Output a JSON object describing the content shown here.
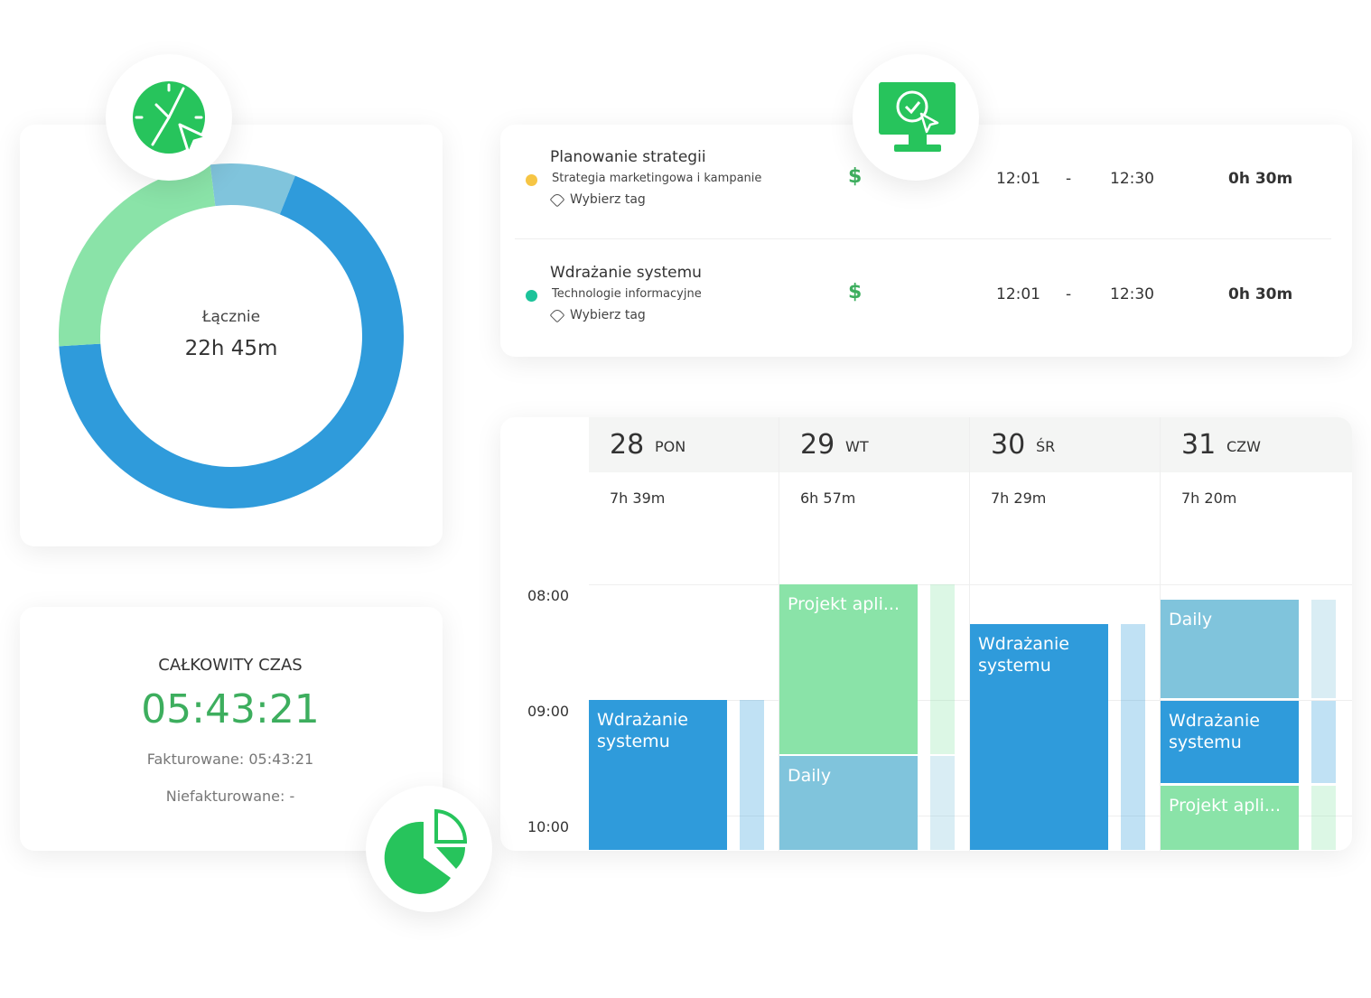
{
  "donut": {
    "label": "Łącznie",
    "total": "22h 45m",
    "segments": [
      {
        "color": "#80c4dc",
        "value": 8
      },
      {
        "color": "#2f9bdb",
        "value": 68
      },
      {
        "color": "#8ae3a8",
        "value": 24
      }
    ]
  },
  "summary": {
    "title": "CAŁKOWITY CZAS",
    "time": "05:43:21",
    "billed": "Fakturowane: 05:43:21",
    "unbilled": "Niefakturowane: -"
  },
  "entries": [
    {
      "title": "Planowanie strategii",
      "project": "Strategia marketingowa i kampanie",
      "dot_color": "#f6c544",
      "tag": "Wybierz tag",
      "currency": "$",
      "start": "12:01",
      "separator": "-",
      "end": "12:30",
      "duration": "0h 30m"
    },
    {
      "title": "Wdrażanie systemu",
      "project": "Technologie informacyjne",
      "dot_color": "#1cc39a",
      "tag": "Wybierz tag",
      "currency": "$",
      "start": "12:01",
      "separator": "-",
      "end": "12:30",
      "duration": "0h 30m"
    }
  ],
  "calendar": {
    "hours": [
      "08:00",
      "09:00",
      "10:00"
    ],
    "days": [
      {
        "date": "28",
        "weekday": "PON",
        "total": "7h 39m",
        "blocks": [
          {
            "label": "Wdrażanie systemu",
            "color": "#2f9bdb"
          }
        ]
      },
      {
        "date": "29",
        "weekday": "WT",
        "total": "6h 57m",
        "blocks": [
          {
            "label": "Projekt apli...",
            "color": "#8ae3a8"
          },
          {
            "label": "Daily",
            "color": "#80c4dc"
          }
        ]
      },
      {
        "date": "30",
        "weekday": "ŚR",
        "total": "7h 29m",
        "blocks": [
          {
            "label": "Wdrażanie systemu",
            "color": "#2f9bdb"
          }
        ]
      },
      {
        "date": "31",
        "weekday": "CZW",
        "total": "7h 20m",
        "blocks": [
          {
            "label": "Daily",
            "color": "#80c4dc"
          },
          {
            "label": "Wdrażanie systemu",
            "color": "#2f9bdb"
          },
          {
            "label": "Projekt apli...",
            "color": "#8ae3a8"
          }
        ]
      }
    ]
  }
}
